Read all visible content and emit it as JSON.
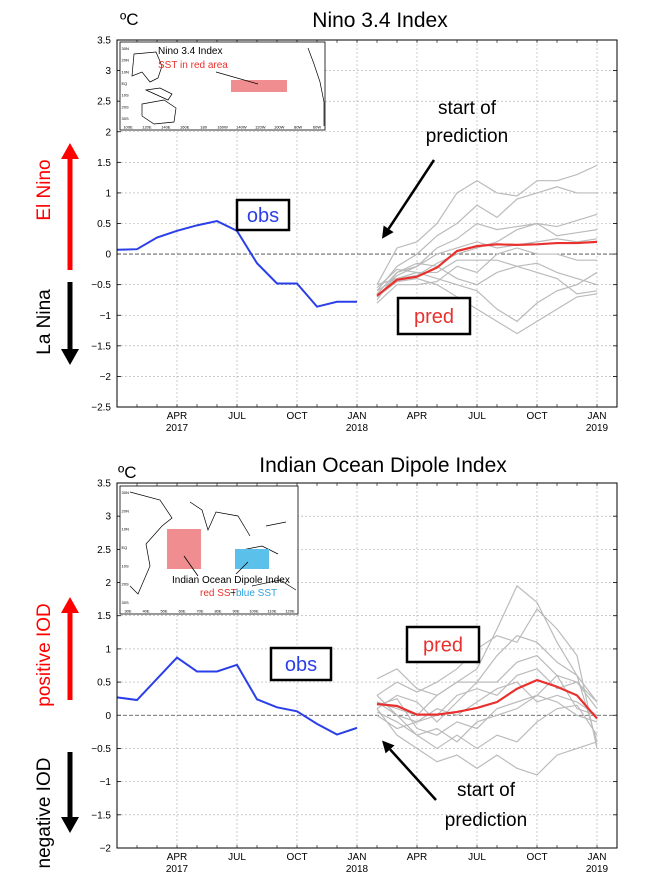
{
  "chart_data": [
    {
      "type": "line",
      "title": "Nino 3.4 Index",
      "ylabel": "ºC",
      "ylim": [
        -2.5,
        3.5
      ],
      "yticks": [
        -2.5,
        -2,
        -1.5,
        -1,
        -0.5,
        0,
        0.5,
        1,
        1.5,
        2,
        2.5,
        3,
        3.5
      ],
      "ytick_labels": [
        "−2.5",
        "−2",
        "−1.5",
        "−1",
        "−0.5",
        "0",
        "0.5",
        "1",
        "1.5",
        "2",
        "2.5",
        "3",
        "3.5"
      ],
      "xlim": [
        "2017-01",
        "2019-02"
      ],
      "xticks": [
        {
          "x": "2017-04",
          "label": "APR",
          "year": "2017"
        },
        {
          "x": "2017-07",
          "label": "JUL",
          "year": ""
        },
        {
          "x": "2017-10",
          "label": "OCT",
          "year": ""
        },
        {
          "x": "2018-01",
          "label": "JAN",
          "year": "2018"
        },
        {
          "x": "2018-04",
          "label": "APR",
          "year": ""
        },
        {
          "x": "2018-07",
          "label": "JUL",
          "year": ""
        },
        {
          "x": "2018-10",
          "label": "OCT",
          "year": ""
        },
        {
          "x": "2019-01",
          "label": "JAN",
          "year": "2019"
        }
      ],
      "grid": true,
      "zero_line": true,
      "side_labels": {
        "upper": "El Nino",
        "lower": "La Nina",
        "upper_color": "#ff0000",
        "lower_color": "#000000"
      },
      "obs": {
        "label": "obs",
        "color": "#2b3fe8",
        "x": [
          "2017-01",
          "2017-02",
          "2017-03",
          "2017-04",
          "2017-05",
          "2017-06",
          "2017-07",
          "2017-08",
          "2017-09",
          "2017-10",
          "2017-11",
          "2017-12",
          "2018-01"
        ],
        "values": [
          0.07,
          0.08,
          0.27,
          0.38,
          0.47,
          0.54,
          0.38,
          -0.15,
          -0.48,
          -0.48,
          -0.86,
          -0.78,
          -0.78
        ]
      },
      "pred": {
        "label": "pred",
        "color": "#e8312e",
        "x": [
          "2018-02",
          "2018-03",
          "2018-04",
          "2018-05",
          "2018-06",
          "2018-07",
          "2018-08",
          "2018-09",
          "2018-10",
          "2018-11",
          "2018-12",
          "2019-01"
        ],
        "values": [
          -0.68,
          -0.42,
          -0.37,
          -0.22,
          0.05,
          0.13,
          0.16,
          0.15,
          0.16,
          0.18,
          0.18,
          0.2
        ]
      },
      "members": {
        "color": "#bbbbbb",
        "x": [
          "2018-02",
          "2018-03",
          "2018-04",
          "2018-05",
          "2018-06",
          "2018-07",
          "2018-08",
          "2018-09",
          "2018-10",
          "2018-11",
          "2018-12",
          "2019-01"
        ],
        "series": [
          [
            -0.5,
            0.1,
            0.2,
            0.5,
            1.0,
            1.2,
            1.0,
            0.95,
            1.2,
            1.2,
            1.3,
            1.45
          ],
          [
            -0.6,
            -0.2,
            0.0,
            0.3,
            0.5,
            0.8,
            0.6,
            0.9,
            1.0,
            1.1,
            1.0,
            1.0
          ],
          [
            -0.7,
            -0.35,
            -0.2,
            0.1,
            0.25,
            0.5,
            0.4,
            0.45,
            0.5,
            0.45,
            0.55,
            0.65
          ],
          [
            -0.5,
            -0.4,
            -0.35,
            -0.15,
            0.0,
            0.1,
            0.2,
            0.4,
            0.5,
            0.3,
            0.35,
            0.4
          ],
          [
            -0.8,
            -0.5,
            -0.5,
            -0.45,
            -0.2,
            -0.3,
            0.0,
            0.1,
            0.0,
            0.0,
            -0.1,
            -0.1
          ],
          [
            -0.55,
            -0.25,
            -0.3,
            -0.3,
            -0.1,
            -0.1,
            -0.1,
            -0.2,
            -0.15,
            -0.3,
            -0.4,
            -0.5
          ],
          [
            -0.75,
            -0.3,
            -0.15,
            -0.2,
            -0.4,
            -0.5,
            -0.3,
            -0.2,
            -0.3,
            -0.4,
            -0.65,
            -0.6
          ],
          [
            -0.6,
            -0.4,
            -0.3,
            -0.4,
            -0.5,
            -0.6,
            -0.9,
            -1.1,
            -0.8,
            -0.6,
            -0.5,
            -0.3
          ],
          [
            -0.7,
            -0.45,
            -0.4,
            -0.5,
            -0.7,
            -0.9,
            -1.1,
            -1.3,
            -1.1,
            -0.9,
            -0.7,
            -0.65
          ],
          [
            -0.65,
            -0.3,
            -0.2,
            0.0,
            0.1,
            0.2,
            0.1,
            0.15,
            0.2,
            0.25,
            0.2,
            0.25
          ]
        ]
      },
      "annotation": {
        "text_line1": "start of",
        "text_line2": "prediction",
        "arrow_to": {
          "x": "2018-01",
          "y": 0.25
        }
      },
      "inset": {
        "title": "Nino 3.4 Index",
        "subtitle": "SST in red area",
        "title_color": "#000000",
        "subtitle_color": "#e8312e",
        "region_color": "#f08d90",
        "xticks": [
          "100E",
          "120E",
          "140E",
          "160E",
          "180",
          "160W",
          "140W",
          "120W",
          "100W",
          "80W",
          "60W"
        ],
        "yticks": [
          "30N",
          "20N",
          "10N",
          "EQ",
          "10S",
          "20S",
          "30S"
        ]
      }
    },
    {
      "type": "line",
      "title": "Indian Ocean Dipole Index",
      "ylabel": "ºC",
      "ylim": [
        -2,
        3.5
      ],
      "yticks": [
        -2,
        -1.5,
        -1,
        -0.5,
        0,
        0.5,
        1,
        1.5,
        2,
        2.5,
        3,
        3.5
      ],
      "ytick_labels": [
        "−2",
        "−1.5",
        "−1",
        "−0.5",
        "0",
        "0.5",
        "1",
        "1.5",
        "2",
        "2.5",
        "3",
        "3.5"
      ],
      "xlim": [
        "2017-01",
        "2019-02"
      ],
      "xticks": [
        {
          "x": "2017-04",
          "label": "APR",
          "year": "2017"
        },
        {
          "x": "2017-07",
          "label": "JUL",
          "year": ""
        },
        {
          "x": "2017-10",
          "label": "OCT",
          "year": ""
        },
        {
          "x": "2018-01",
          "label": "JAN",
          "year": "2018"
        },
        {
          "x": "2018-04",
          "label": "APR",
          "year": ""
        },
        {
          "x": "2018-07",
          "label": "JUL",
          "year": ""
        },
        {
          "x": "2018-10",
          "label": "OCT",
          "year": ""
        },
        {
          "x": "2019-01",
          "label": "JAN",
          "year": "2019"
        }
      ],
      "grid": true,
      "zero_line": true,
      "side_labels": {
        "upper": "positive IOD",
        "lower": "negative IOD",
        "upper_color": "#ff0000",
        "lower_color": "#000000"
      },
      "obs": {
        "label": "obs",
        "color": "#2b3fe8",
        "x": [
          "2017-01",
          "2017-02",
          "2017-03",
          "2017-04",
          "2017-05",
          "2017-06",
          "2017-07",
          "2017-08",
          "2017-09",
          "2017-10",
          "2017-11",
          "2017-12",
          "2018-01"
        ],
        "values": [
          0.27,
          0.23,
          0.55,
          0.87,
          0.66,
          0.66,
          0.76,
          0.24,
          0.12,
          0.06,
          -0.13,
          -0.29,
          -0.19
        ]
      },
      "pred": {
        "label": "pred",
        "color": "#e8312e",
        "x": [
          "2018-02",
          "2018-03",
          "2018-04",
          "2018-05",
          "2018-06",
          "2018-07",
          "2018-08",
          "2018-09",
          "2018-10",
          "2018-11",
          "2018-12",
          "2019-01"
        ],
        "values": [
          0.17,
          0.14,
          0.01,
          0.01,
          0.05,
          0.11,
          0.2,
          0.4,
          0.53,
          0.43,
          0.3,
          -0.05
        ]
      },
      "members": {
        "color": "#bbbbbb",
        "x": [
          "2018-02",
          "2018-03",
          "2018-04",
          "2018-05",
          "2018-06",
          "2018-07",
          "2018-08",
          "2018-09",
          "2018-10",
          "2018-11",
          "2018-12",
          "2019-01"
        ],
        "series": [
          [
            0.55,
            0.7,
            0.4,
            0.3,
            0.5,
            0.7,
            1.3,
            1.95,
            1.7,
            1.1,
            0.6,
            -0.4
          ],
          [
            0.3,
            0.5,
            0.35,
            0.5,
            0.7,
            1.0,
            1.2,
            1.1,
            1.6,
            1.3,
            0.9,
            -0.5
          ],
          [
            0.2,
            0.1,
            0.0,
            0.3,
            0.5,
            0.5,
            0.9,
            1.2,
            1.1,
            0.8,
            0.6,
            0.2
          ],
          [
            0.1,
            0.3,
            0.2,
            -0.1,
            0.2,
            0.5,
            0.5,
            0.8,
            0.9,
            0.6,
            0.5,
            0.1
          ],
          [
            0.0,
            -0.2,
            -0.1,
            0.0,
            0.3,
            0.4,
            0.3,
            0.6,
            0.7,
            0.4,
            0.5,
            0.2
          ],
          [
            0.15,
            0.25,
            -0.2,
            -0.3,
            -0.1,
            -0.2,
            0.1,
            0.2,
            0.3,
            0.2,
            0.0,
            -0.1
          ],
          [
            0.3,
            0.0,
            -0.3,
            -0.2,
            -0.4,
            -0.1,
            0.0,
            0.1,
            0.3,
            0.6,
            0.1,
            0.0
          ],
          [
            0.05,
            -0.1,
            -0.3,
            -0.5,
            -0.3,
            -0.5,
            -0.3,
            -0.4,
            -0.1,
            0.1,
            0.15,
            -0.3
          ],
          [
            0.1,
            -0.3,
            -0.5,
            -0.7,
            -0.6,
            -0.8,
            -0.6,
            -0.8,
            -0.9,
            -0.6,
            -0.5,
            -0.4
          ],
          [
            0.2,
            0.0,
            -0.1,
            0.1,
            0.0,
            0.2,
            0.4,
            0.5,
            0.2,
            0.3,
            0.2,
            0.0
          ]
        ]
      },
      "annotation": {
        "text_line1": "start of",
        "text_line2": "prediction",
        "arrow_to": {
          "x": "2018-01",
          "y": -0.38
        }
      },
      "inset": {
        "title": "Indian Ocean Dipole Index",
        "subtitle_left": "red SST",
        "subtitle_mid": "−",
        "subtitle_right": "blue SST",
        "title_color": "#000000",
        "left_color": "#e8312e",
        "right_color": "#2e9fdd",
        "west_color": "#f08d90",
        "east_color": "#5cc1ea",
        "xticks": [
          "30E",
          "40E",
          "50E",
          "60E",
          "70E",
          "80E",
          "90E",
          "100E",
          "110E",
          "120E"
        ],
        "yticks": [
          "30N",
          "20N",
          "10N",
          "EQ",
          "10S",
          "20S",
          "30S"
        ]
      }
    }
  ]
}
